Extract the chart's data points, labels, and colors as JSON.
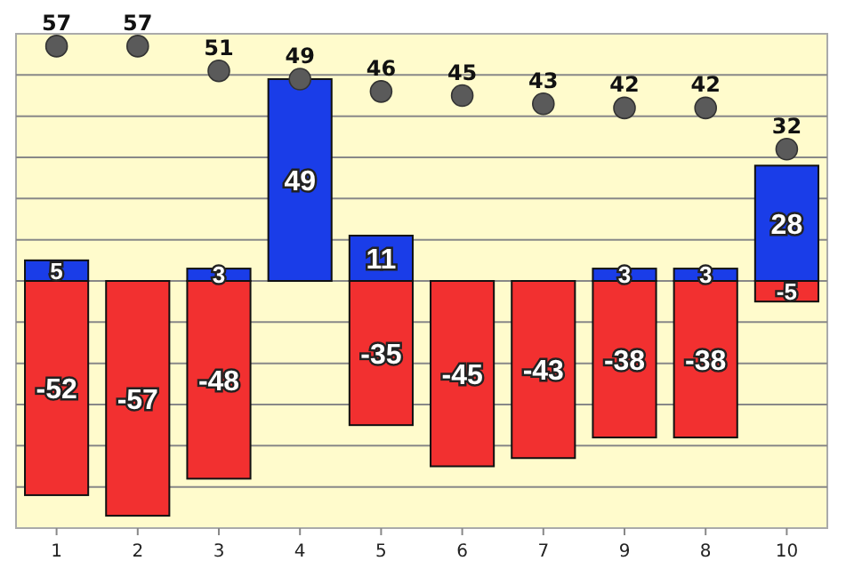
{
  "chart_data": {
    "type": "bar",
    "stacked": true,
    "categories": [
      "1",
      "2",
      "3",
      "4",
      "5",
      "6",
      "7",
      "9",
      "8",
      "10"
    ],
    "series": [
      {
        "color": "#1a3de8",
        "values": [
          5,
          null,
          3,
          49,
          11,
          null,
          null,
          3,
          3,
          28
        ]
      },
      {
        "color": "#f23030",
        "values": [
          -52,
          -57,
          -48,
          null,
          -35,
          -45,
          -43,
          -38,
          -38,
          -5
        ]
      },
      {
        "type": "scatter",
        "color": "#5a5a5a",
        "x": [
          "1",
          "2",
          "3",
          "4",
          "5",
          "6",
          "7",
          "9",
          "8",
          "10"
        ],
        "values": [
          57,
          57,
          51,
          49,
          46,
          45,
          43,
          42,
          42,
          32
        ]
      }
    ],
    "ylim": [
      -60,
      60
    ],
    "yticks": [
      {
        "value": -50,
        "label": null
      },
      {
        "value": -40,
        "label": null
      },
      {
        "value": -30,
        "label": null
      },
      {
        "value": -20,
        "label": null
      },
      {
        "value": -10,
        "label": null
      },
      {
        "value": 0,
        "label": null
      },
      {
        "value": 10,
        "label": null
      },
      {
        "value": 20,
        "label": null
      },
      {
        "value": 30,
        "label": null
      },
      {
        "value": 40,
        "label": null
      },
      {
        "value": 50,
        "label": null
      }
    ],
    "grid": "y",
    "data_labels": true,
    "tick_labels": "x",
    "marker": "circle"
  }
}
